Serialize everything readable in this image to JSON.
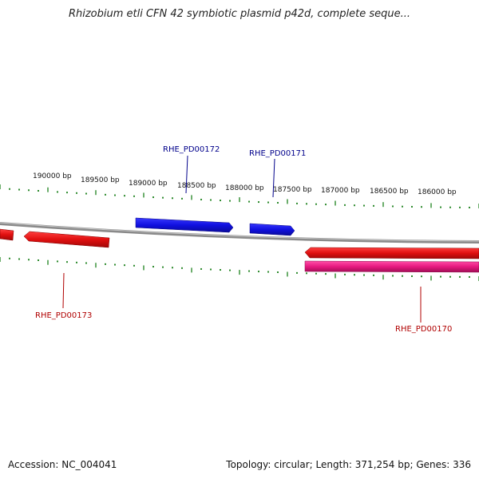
{
  "title": "Rhizobium etli CFN 42 symbiotic plasmid p42d, complete seque...",
  "footer": {
    "accession": "Accession: NC_004041",
    "summary": "Topology: circular; Length: 371,254 bp; Genes: 336"
  },
  "colors": {
    "backbone": "#8a8a8a",
    "tick": "#2e8b2e",
    "forward_gene": "#1414e6",
    "reverse_gene": "#e01010",
    "rna_gene": "#e6197f",
    "forward_label": "#00008b",
    "reverse_label": "#b00000"
  },
  "scale_labels": [
    "190000 bp",
    "189500 bp",
    "189000 bp",
    "188500 bp",
    "188000 bp",
    "187500 bp",
    "187000 bp",
    "186500 bp",
    "186000 bp"
  ],
  "genes": [
    {
      "name": "RHE_PD00172",
      "strand": "forward"
    },
    {
      "name": "RHE_PD00171",
      "strand": "forward"
    },
    {
      "name": "RHE_PD00173",
      "strand": "reverse"
    },
    {
      "name": "RHE_PD00170",
      "strand": "reverse"
    }
  ]
}
